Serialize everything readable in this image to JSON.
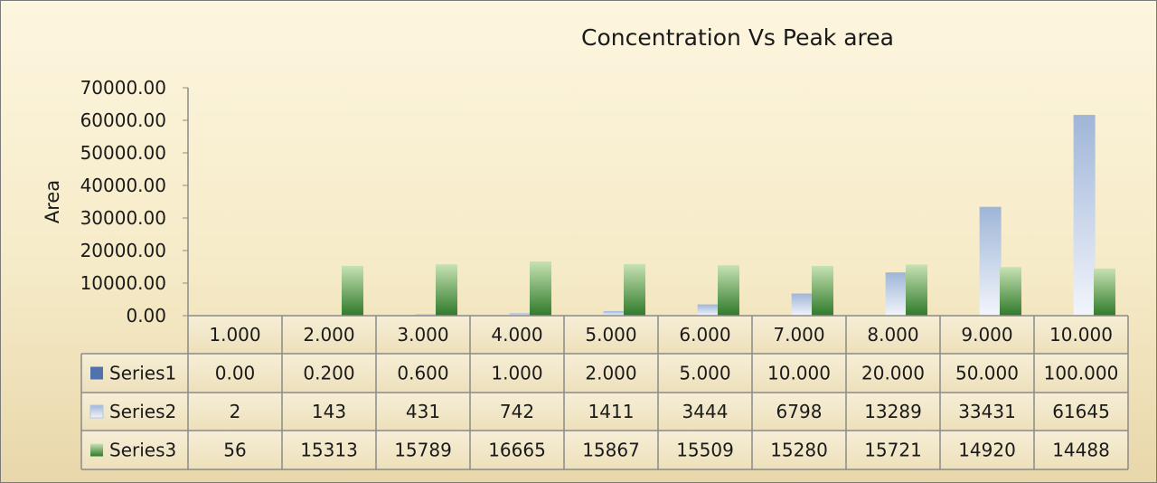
{
  "chart_data": {
    "type": "bar",
    "title": "Concentration Vs Peak area",
    "ylabel": "Area",
    "xlabel": "",
    "ylim": [
      0,
      70000
    ],
    "yticks": [
      "0.00",
      "10000.00",
      "20000.00",
      "30000.00",
      "40000.00",
      "50000.00",
      "60000.00",
      "70000.00"
    ],
    "grid": false,
    "legend": "data-table",
    "categories": [
      "1.000",
      "2.000",
      "3.000",
      "4.000",
      "5.000",
      "6.000",
      "7.000",
      "8.000",
      "9.000",
      "10.000"
    ],
    "series": [
      {
        "name": "Series1",
        "color": "#4f74ad",
        "values": [
          0.0,
          0.2,
          0.6,
          1.0,
          2.0,
          5.0,
          10.0,
          20.0,
          50.0,
          100.0
        ],
        "labels": [
          "0.00",
          "0.200",
          "0.600",
          "1.000",
          "2.000",
          "5.000",
          "10.000",
          "20.000",
          "50.000",
          "100.000"
        ]
      },
      {
        "name": "Series2",
        "color": "#b4c6e2",
        "values": [
          2,
          143,
          431,
          742,
          1411,
          3444,
          6798,
          13289,
          33431,
          61645
        ],
        "labels": [
          "2",
          "143",
          "431",
          "742",
          "1411",
          "3444",
          "6798",
          "13289",
          "33431",
          "61645"
        ]
      },
      {
        "name": "Series3",
        "color": "#4e9a3c",
        "values": [
          56,
          15313,
          15789,
          16665,
          15867,
          15509,
          15280,
          15721,
          14920,
          14488
        ],
        "labels": [
          "56",
          "15313",
          "15789",
          "16665",
          "15867",
          "15509",
          "15280",
          "15721",
          "14920",
          "14488"
        ]
      }
    ]
  }
}
